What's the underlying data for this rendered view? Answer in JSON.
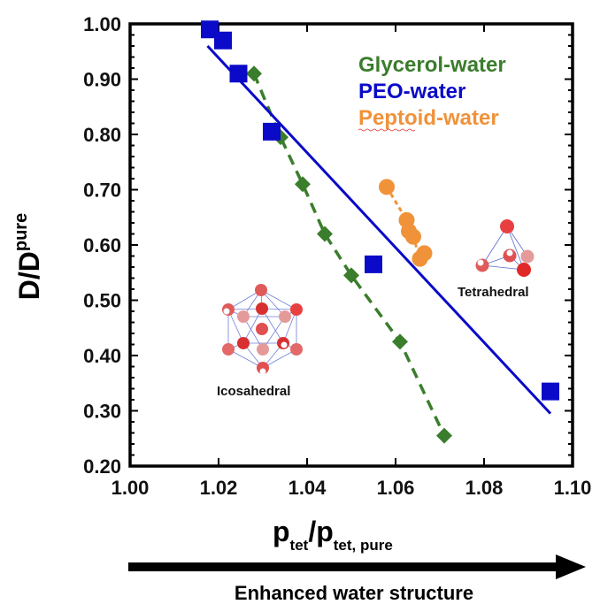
{
  "chart_data": {
    "type": "scatter",
    "title": "",
    "xlabel": {
      "main": "p",
      "sub1": "tet",
      "slash": "/p",
      "sub2": "tet, pure"
    },
    "ylabel": {
      "main": "D/D",
      "sub": "pure"
    },
    "xlim": [
      1.0,
      1.1
    ],
    "ylim": [
      0.2,
      1.0
    ],
    "xticks": [
      "1.00",
      "1.02",
      "1.04",
      "1.06",
      "1.08",
      "1.10"
    ],
    "yticks": [
      "1.00",
      "0.90",
      "0.80",
      "0.70",
      "0.60",
      "0.50",
      "0.40",
      "0.30",
      "0.20"
    ],
    "grid": false,
    "legend_position": "top-right",
    "series": [
      {
        "name": "Glycerol-water",
        "marker": "diamond",
        "color": "#3a7d2c",
        "line": "dashed",
        "x": [
          1.028,
          1.034,
          1.039,
          1.044,
          1.05,
          1.061,
          1.071
        ],
        "y": [
          0.91,
          0.795,
          0.71,
          0.62,
          0.545,
          0.425,
          0.255
        ]
      },
      {
        "name": "PEO-water",
        "marker": "square",
        "color": "#0a0ac8",
        "line": "fit",
        "fit": {
          "x": [
            1.0175,
            1.095
          ],
          "y": [
            0.96,
            0.295
          ]
        },
        "x": [
          1.018,
          1.021,
          1.0245,
          1.032,
          1.055,
          1.095
        ],
        "y": [
          0.99,
          0.97,
          0.91,
          0.805,
          0.565,
          0.335
        ]
      },
      {
        "name": "Peptoid-water",
        "marker": "circle",
        "color": "#f0923a",
        "line": "dashed",
        "x": [
          1.058,
          1.0625,
          1.063,
          1.064,
          1.0655,
          1.0665
        ],
        "y": [
          0.705,
          0.645,
          0.625,
          0.615,
          0.575,
          0.585
        ]
      }
    ],
    "annotations": {
      "icosahedral": "Icosahedral",
      "tetrahedral": "Tetrahedral",
      "arrow_label": "Enhanced water structure"
    }
  }
}
